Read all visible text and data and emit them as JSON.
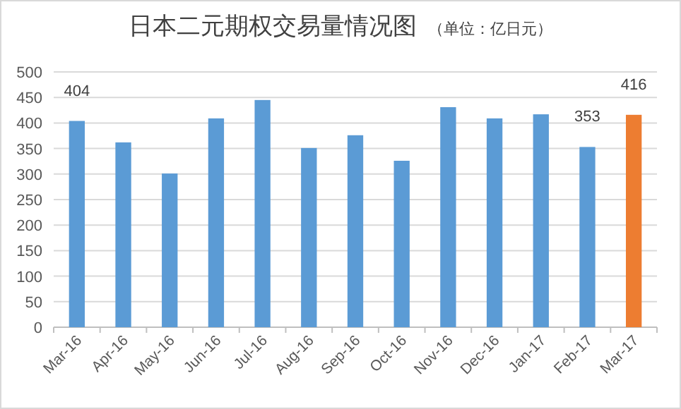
{
  "chart_data": {
    "type": "bar",
    "title": "日本二元期权交易量情况图",
    "subtitle": "（单位：亿日元）",
    "categories": [
      "Mar-16",
      "Apr-16",
      "May-16",
      "Jun-16",
      "Jul-16",
      "Aug-16",
      "Sep-16",
      "Oct-16",
      "Nov-16",
      "Dec-16",
      "Jan-17",
      "Feb-17",
      "Mar-17"
    ],
    "values": [
      404,
      362,
      301,
      409,
      445,
      351,
      376,
      326,
      431,
      409,
      417,
      353,
      416
    ],
    "colors": [
      "#5b9bd5",
      "#5b9bd5",
      "#5b9bd5",
      "#5b9bd5",
      "#5b9bd5",
      "#5b9bd5",
      "#5b9bd5",
      "#5b9bd5",
      "#5b9bd5",
      "#5b9bd5",
      "#5b9bd5",
      "#5b9bd5",
      "#ed7d31"
    ],
    "value_labels": [
      "404",
      null,
      null,
      null,
      null,
      null,
      null,
      null,
      null,
      null,
      null,
      "353",
      "416"
    ],
    "ylim": [
      0,
      500
    ],
    "yticks": [
      0,
      50,
      100,
      150,
      200,
      250,
      300,
      350,
      400,
      450,
      500
    ],
    "grid": "y"
  }
}
